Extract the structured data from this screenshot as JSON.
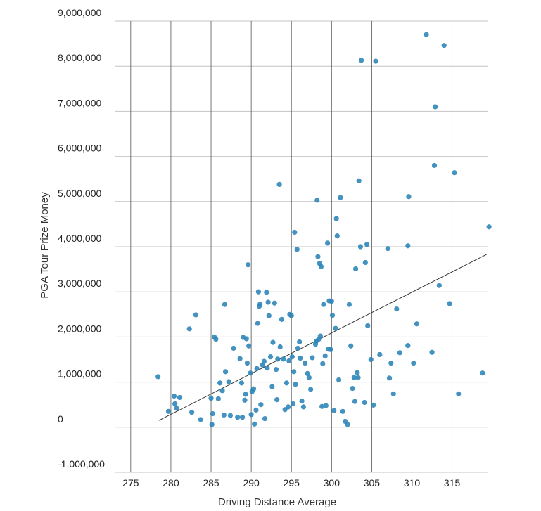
{
  "chart_data": {
    "type": "scatter",
    "title": "",
    "xlabel": "Driving Distance Average",
    "ylabel": "PGA Tour Prize Money",
    "xlim": [
      273,
      319.5
    ],
    "ylim": [
      -1000000,
      9000000
    ],
    "x_ticks": [
      275,
      280,
      285,
      290,
      295,
      300,
      305,
      310,
      315
    ],
    "y_ticks": [
      {
        "value": 9000000,
        "label": "9,000,000"
      },
      {
        "value": 8000000,
        "label": "8,000,000"
      },
      {
        "value": 7000000,
        "label": "7,000,000"
      },
      {
        "value": 6000000,
        "label": "6,000,000"
      },
      {
        "value": 5000000,
        "label": "5,000,000"
      },
      {
        "value": 4000000,
        "label": "4,000,000"
      },
      {
        "value": 3000000,
        "label": "3,000,000"
      },
      {
        "value": 2000000,
        "label": "2,000,000"
      },
      {
        "value": 1000000,
        "label": "1,000,000"
      },
      {
        "value": 0,
        "label": "0"
      },
      {
        "value": -1000000,
        "label": "-1,000,000"
      }
    ],
    "grid": true,
    "point_color": "#2f86b8",
    "line_color": "#333333",
    "trendline": {
      "x": [
        278.5,
        319.3
      ],
      "y": [
        150000,
        3830000
      ]
    },
    "points": [
      [
        278.4,
        1120000
      ],
      [
        279.7,
        350000
      ],
      [
        280.4,
        690000
      ],
      [
        280.5,
        520000
      ],
      [
        280.7,
        420000
      ],
      [
        281.1,
        660000
      ],
      [
        282.3,
        2180000
      ],
      [
        282.6,
        330000
      ],
      [
        283.1,
        2490000
      ],
      [
        283.7,
        170000
      ],
      [
        285.0,
        640000
      ],
      [
        285.1,
        60000
      ],
      [
        285.2,
        300000
      ],
      [
        285.4,
        2000000
      ],
      [
        285.6,
        1950000
      ],
      [
        285.9,
        630000
      ],
      [
        286.1,
        980000
      ],
      [
        286.4,
        810000
      ],
      [
        286.6,
        270000
      ],
      [
        286.7,
        2720000
      ],
      [
        286.8,
        1230000
      ],
      [
        287.2,
        1010000
      ],
      [
        287.4,
        260000
      ],
      [
        287.8,
        1750000
      ],
      [
        288.3,
        220000
      ],
      [
        288.6,
        1520000
      ],
      [
        288.8,
        980000
      ],
      [
        288.9,
        220000
      ],
      [
        289.0,
        1990000
      ],
      [
        289.2,
        600000
      ],
      [
        289.3,
        730000
      ],
      [
        289.4,
        1960000
      ],
      [
        289.5,
        1420000
      ],
      [
        289.6,
        3600000
      ],
      [
        289.7,
        1800000
      ],
      [
        289.9,
        1200000
      ],
      [
        290.0,
        280000
      ],
      [
        290.1,
        790000
      ],
      [
        290.3,
        850000
      ],
      [
        290.4,
        70000
      ],
      [
        290.6,
        380000
      ],
      [
        290.7,
        1300000
      ],
      [
        290.8,
        2300000
      ],
      [
        290.9,
        3000000
      ],
      [
        291.0,
        2680000
      ],
      [
        291.1,
        2730000
      ],
      [
        291.2,
        500000
      ],
      [
        291.4,
        1380000
      ],
      [
        291.6,
        1460000
      ],
      [
        291.7,
        190000
      ],
      [
        291.9,
        2990000
      ],
      [
        292.0,
        1310000
      ],
      [
        292.1,
        2770000
      ],
      [
        292.2,
        2470000
      ],
      [
        292.4,
        1560000
      ],
      [
        292.6,
        900000
      ],
      [
        292.7,
        1880000
      ],
      [
        292.9,
        2750000
      ],
      [
        293.1,
        1280000
      ],
      [
        293.2,
        610000
      ],
      [
        293.3,
        1510000
      ],
      [
        293.5,
        5380000
      ],
      [
        293.6,
        1780000
      ],
      [
        293.8,
        2390000
      ],
      [
        294.0,
        1510000
      ],
      [
        294.2,
        390000
      ],
      [
        294.4,
        980000
      ],
      [
        294.6,
        450000
      ],
      [
        294.7,
        1470000
      ],
      [
        294.8,
        2500000
      ],
      [
        295.0,
        2470000
      ],
      [
        295.1,
        1560000
      ],
      [
        295.2,
        520000
      ],
      [
        295.3,
        1230000
      ],
      [
        295.4,
        4320000
      ],
      [
        295.5,
        950000
      ],
      [
        295.7,
        3940000
      ],
      [
        295.8,
        1750000
      ],
      [
        296.0,
        1890000
      ],
      [
        296.1,
        1530000
      ],
      [
        296.3,
        580000
      ],
      [
        296.5,
        450000
      ],
      [
        296.7,
        1420000
      ],
      [
        297.0,
        1190000
      ],
      [
        297.2,
        1100000
      ],
      [
        297.4,
        840000
      ],
      [
        297.6,
        1540000
      ],
      [
        298.0,
        1840000
      ],
      [
        298.1,
        1910000
      ],
      [
        298.2,
        5030000
      ],
      [
        298.3,
        3780000
      ],
      [
        298.4,
        1950000
      ],
      [
        298.5,
        3630000
      ],
      [
        298.6,
        2020000
      ],
      [
        298.7,
        3560000
      ],
      [
        298.8,
        460000
      ],
      [
        298.9,
        1410000
      ],
      [
        299.0,
        2720000
      ],
      [
        299.2,
        1580000
      ],
      [
        299.3,
        480000
      ],
      [
        299.5,
        4080000
      ],
      [
        299.6,
        1730000
      ],
      [
        299.7,
        2800000
      ],
      [
        299.9,
        1720000
      ],
      [
        300.0,
        2790000
      ],
      [
        300.1,
        2480000
      ],
      [
        300.3,
        370000
      ],
      [
        300.5,
        2190000
      ],
      [
        300.6,
        4620000
      ],
      [
        300.7,
        4240000
      ],
      [
        300.9,
        1050000
      ],
      [
        301.1,
        5090000
      ],
      [
        301.4,
        350000
      ],
      [
        301.7,
        130000
      ],
      [
        302.0,
        60000
      ],
      [
        302.2,
        2720000
      ],
      [
        302.4,
        1800000
      ],
      [
        302.6,
        860000
      ],
      [
        302.8,
        1100000
      ],
      [
        302.9,
        570000
      ],
      [
        303.0,
        3510000
      ],
      [
        303.2,
        1210000
      ],
      [
        303.3,
        1100000
      ],
      [
        303.4,
        5460000
      ],
      [
        303.6,
        4000000
      ],
      [
        303.7,
        8130000
      ],
      [
        304.1,
        550000
      ],
      [
        304.2,
        3650000
      ],
      [
        304.4,
        4050000
      ],
      [
        304.5,
        2250000
      ],
      [
        304.9,
        1500000
      ],
      [
        305.2,
        490000
      ],
      [
        305.5,
        8110000
      ],
      [
        306.0,
        1610000
      ],
      [
        307.0,
        3960000
      ],
      [
        307.2,
        1090000
      ],
      [
        307.4,
        1420000
      ],
      [
        307.7,
        740000
      ],
      [
        308.1,
        2620000
      ],
      [
        308.5,
        1650000
      ],
      [
        309.5,
        1810000
      ],
      [
        309.5,
        4020000
      ],
      [
        309.6,
        5110000
      ],
      [
        310.2,
        1420000
      ],
      [
        310.6,
        2290000
      ],
      [
        311.8,
        8700000
      ],
      [
        312.5,
        1660000
      ],
      [
        312.8,
        5800000
      ],
      [
        312.9,
        7100000
      ],
      [
        313.4,
        3140000
      ],
      [
        314.0,
        8460000
      ],
      [
        314.7,
        2740000
      ],
      [
        315.3,
        5640000
      ],
      [
        315.8,
        740000
      ],
      [
        318.8,
        1200000
      ],
      [
        319.6,
        4440000
      ]
    ]
  }
}
